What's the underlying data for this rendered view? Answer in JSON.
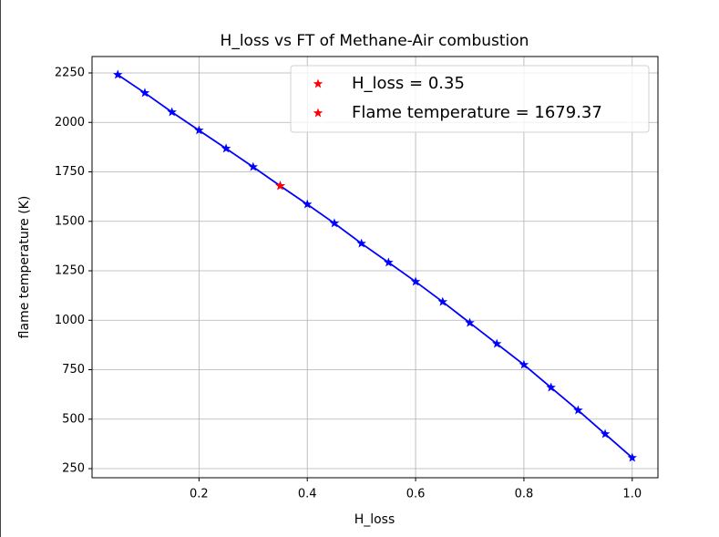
{
  "chart_data": {
    "type": "line",
    "title": "H_loss vs FT of Methane-Air combustion",
    "x_label": "H_loss",
    "y_label": "flame temperature (K)",
    "xlim": [
      0.0025,
      1.0475
    ],
    "ylim": [
      204,
      2333
    ],
    "xticks": [
      0.2,
      0.4,
      0.6,
      0.8,
      {
        "value": 1,
        "label": "1.0"
      }
    ],
    "yticks": [
      250,
      500,
      750,
      1000,
      1250,
      1500,
      1750,
      2000,
      2250
    ],
    "grid": true,
    "legend": "upper right",
    "series": [
      {
        "color": "#0000ff",
        "marker": "star",
        "line": true,
        "x": [
          0.05,
          0.1,
          0.15,
          0.2,
          0.25,
          0.3,
          0.35,
          0.4,
          0.45,
          0.5,
          0.55,
          0.6,
          0.65,
          0.7,
          0.75,
          0.8,
          0.85,
          0.9,
          0.95,
          1.0
        ],
        "values": [
          2241,
          2149,
          2052,
          1960,
          1868,
          1775,
          1679,
          1586,
          1490,
          1388,
          1292,
          1195,
          1093,
          987,
          881,
          775,
          660,
          545,
          425,
          305
        ]
      },
      {
        "name": "H_loss = 0.35",
        "color": "#ff0000",
        "marker": "star",
        "line": false,
        "x": [
          0.35
        ],
        "values": [
          1679.37
        ]
      },
      {
        "name": "Flame temperature = 1679.37",
        "color": "#ff0000",
        "marker": "star",
        "line": false,
        "x": [
          0.35
        ],
        "values": [
          1679.37
        ]
      }
    ]
  }
}
